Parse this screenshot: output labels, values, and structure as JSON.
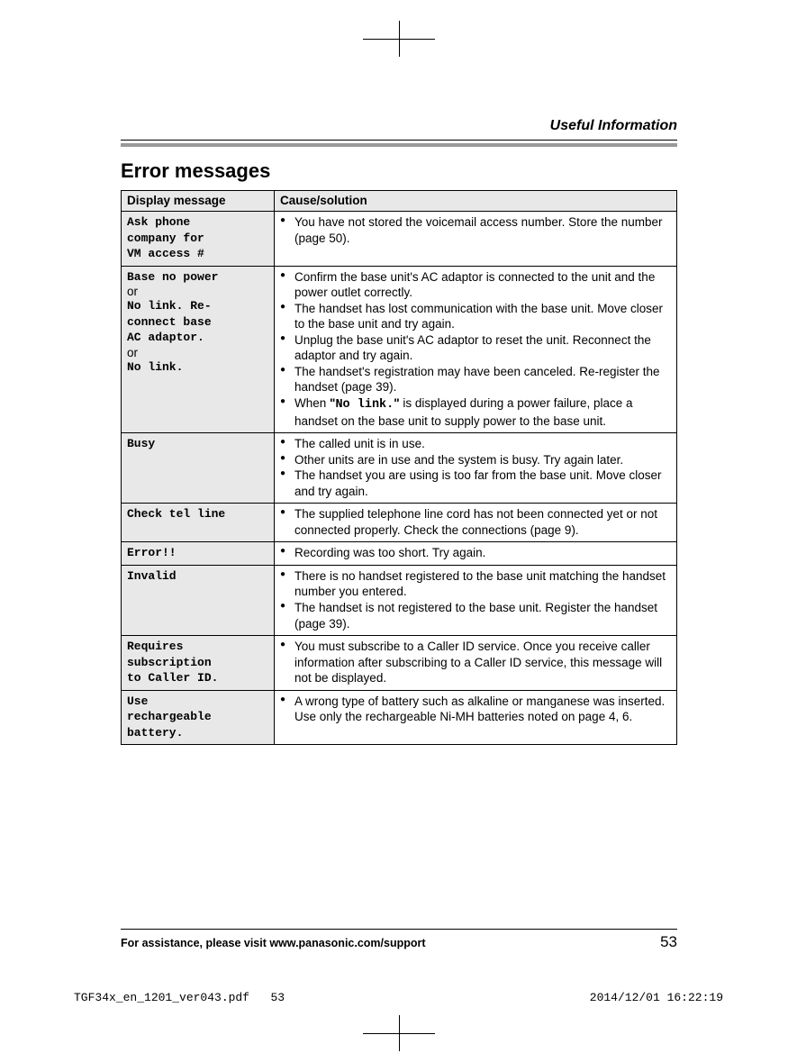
{
  "header": {
    "section_title": "Useful Information"
  },
  "heading": "Error messages",
  "table": {
    "columns": [
      "Display message",
      "Cause/solution"
    ],
    "rows": [
      {
        "message_parts": [
          {
            "text": "Ask phone",
            "mono": true
          },
          {
            "text": "company for",
            "mono": true
          },
          {
            "text": "VM access #",
            "mono": true
          }
        ],
        "solutions": [
          "You have not stored the voicemail access number. Store the number (page 50)."
        ]
      },
      {
        "message_parts": [
          {
            "text": "Base no power",
            "mono": true
          },
          {
            "text": "or",
            "mono": false
          },
          {
            "text": "No link. Re-",
            "mono": true
          },
          {
            "text": "connect base",
            "mono": true
          },
          {
            "text": "AC adaptor.",
            "mono": true
          },
          {
            "text": "or",
            "mono": false
          },
          {
            "text": "No link.",
            "mono": true
          }
        ],
        "solutions": [
          "Confirm the base unit's AC adaptor is connected to the unit and the power outlet correctly.",
          "The handset has lost communication with the base unit. Move closer to the base unit and try again.",
          "Unplug the base unit's AC adaptor to reset the unit. Reconnect the adaptor and try again.",
          "The handset's registration may have been canceled. Re-register the handset (page 39).",
          "When \"No link.\" is displayed during a power failure, place a handset on the base unit to supply power to the base unit."
        ],
        "solution_inline_mono": {
          "4": "\"No link.\""
        }
      },
      {
        "message_parts": [
          {
            "text": "Busy",
            "mono": true
          }
        ],
        "solutions": [
          "The called unit is in use.",
          "Other units are in use and the system is busy. Try again later.",
          "The handset you are using is too far from the base unit. Move closer and try again."
        ]
      },
      {
        "message_parts": [
          {
            "text": "Check tel line",
            "mono": true
          }
        ],
        "solutions": [
          "The supplied telephone line cord has not been connected yet or not connected properly. Check the connections (page 9)."
        ]
      },
      {
        "message_parts": [
          {
            "text": "Error!!",
            "mono": true
          }
        ],
        "solutions": [
          "Recording was too short. Try again."
        ]
      },
      {
        "message_parts": [
          {
            "text": "Invalid",
            "mono": true
          }
        ],
        "solutions": [
          "There is no handset registered to the base unit matching the handset number you entered.",
          "The handset is not registered to the base unit. Register the handset (page 39)."
        ]
      },
      {
        "message_parts": [
          {
            "text": "Requires",
            "mono": true
          },
          {
            "text": "subscription",
            "mono": true
          },
          {
            "text": "to Caller ID.",
            "mono": true
          }
        ],
        "solutions": [
          "You must subscribe to a Caller ID service. Once you receive caller information after subscribing to a Caller ID service, this message will not be displayed."
        ]
      },
      {
        "message_parts": [
          {
            "text": "Use",
            "mono": true
          },
          {
            "text": "rechargeable",
            "mono": true
          },
          {
            "text": "battery.",
            "mono": true
          }
        ],
        "solutions": [
          "A wrong type of battery such as alkaline or manganese was inserted. Use only the rechargeable Ni-MH batteries noted on page 4, 6."
        ]
      }
    ]
  },
  "footer": {
    "text": "For assistance, please visit www.panasonic.com/support",
    "page_num": "53"
  },
  "print_info": {
    "file": "TGF34x_en_1201_ver043.pdf",
    "page": "53",
    "timestamp": "2014/12/01   16:22:19"
  },
  "colors": {
    "header_cell_bg": "#e8e8e8",
    "thick_rule": "#999999",
    "text": "#000000",
    "background": "#ffffff"
  }
}
